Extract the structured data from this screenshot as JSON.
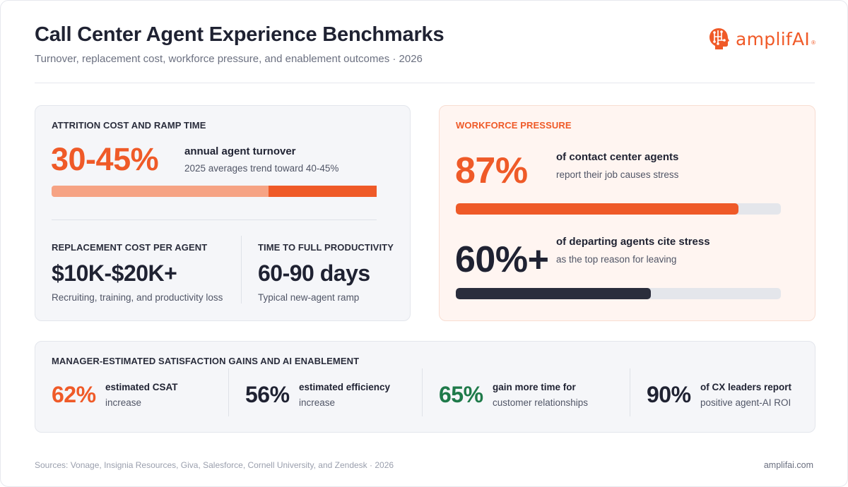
{
  "header": {
    "title": "Call Center Agent Experience Benchmarks",
    "subtitle": "Turnover, replacement cost, workforce pressure, and enablement outcomes · 2026",
    "logo_text": "amplifAI",
    "logo_mark": "®"
  },
  "attrition": {
    "label": "ATTRITION COST AND RAMP TIME",
    "value": "30-45%",
    "headline": "annual agent turnover",
    "note": "2025 averages trend toward 40-45%",
    "bar": {
      "low_percent": 30,
      "high_percent": 45,
      "scale_max_percent": 45
    },
    "replacement": {
      "label": "REPLACEMENT COST PER AGENT",
      "value": "$10K-$20K+",
      "note": "Recruiting, training, and productivity loss"
    },
    "ramp": {
      "label": "TIME TO FULL PRODUCTIVITY",
      "value": "60-90 days",
      "note": "Typical new-agent ramp"
    }
  },
  "pressure": {
    "label": "WORKFORCE PRESSURE",
    "stress": {
      "value": "87%",
      "headline": "of contact center agents",
      "note": "report their job causes stress",
      "percent": 87
    },
    "departing": {
      "value": "60%+",
      "headline": "of departing agents cite stress",
      "note": "as the top reason for leaving",
      "percent": 60
    }
  },
  "gains": {
    "label": "MANAGER-ESTIMATED SATISFACTION GAINS AND AI ENABLEMENT",
    "items": [
      {
        "value": "62%",
        "headline": "estimated CSAT",
        "note": "increase"
      },
      {
        "value": "56%",
        "headline": "estimated efficiency",
        "note": "increase"
      },
      {
        "value": "65%",
        "headline": "gain more time for",
        "note": "customer relationships"
      },
      {
        "value": "90%",
        "headline": "of CX leaders report",
        "note": "positive agent-AI ROI"
      }
    ]
  },
  "footer": {
    "sources": "Sources: Vonage, Insignia Resources, Giva, Salesforce, Cornell University, and Zendesk · 2026",
    "url": "amplifai.com"
  },
  "colors": {
    "accent_orange": "#ef5a28",
    "light_orange": "#f6a384",
    "dark": "#2a2d3c",
    "green": "#1f7a4a",
    "track": "#e4e6eb"
  },
  "icons": {
    "logo": "brain-logo-icon"
  }
}
